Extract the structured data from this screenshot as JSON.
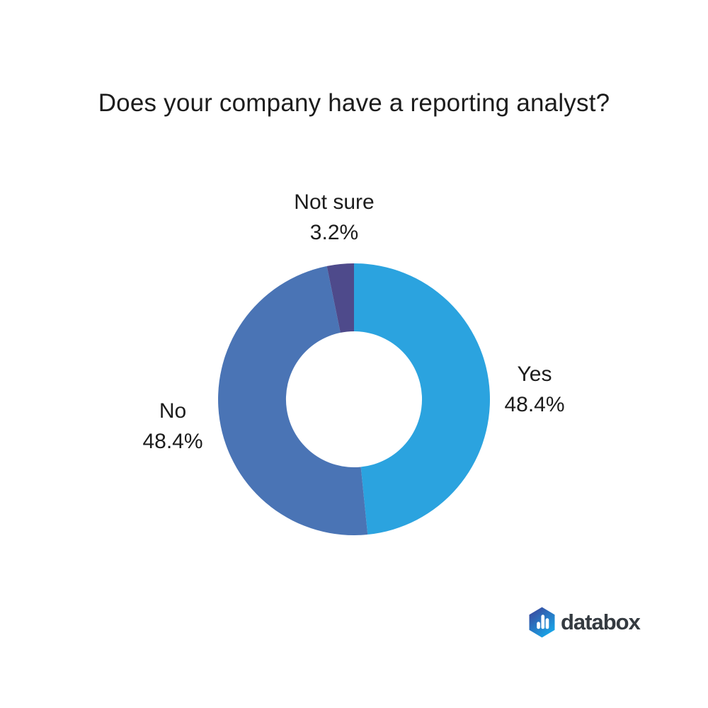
{
  "title": "Does your company have a reporting analyst?",
  "chart_data": {
    "type": "pie",
    "subtype": "donut",
    "title": "Does your company have a reporting analyst?",
    "start_angle_deg": 0,
    "direction": "clockwise",
    "inner_radius_pct": 50,
    "legend": "none",
    "labels_position": "outside",
    "slices": [
      {
        "label": "Yes",
        "value": 48.4,
        "display": "48.4%",
        "color": "#2BA3DF"
      },
      {
        "label": "No",
        "value": 48.4,
        "display": "48.4%",
        "color": "#4A74B5"
      },
      {
        "label": "Not sure",
        "value": 3.2,
        "display": "3.2%",
        "color": "#4E4A8B"
      }
    ]
  },
  "logo": {
    "brand": "databox",
    "icon": "hexagon-bar-chart-icon",
    "gradient_start": "#3E3F96",
    "gradient_end": "#17A7E9",
    "bar_color": "#ffffff",
    "text_color": "#343A40"
  }
}
